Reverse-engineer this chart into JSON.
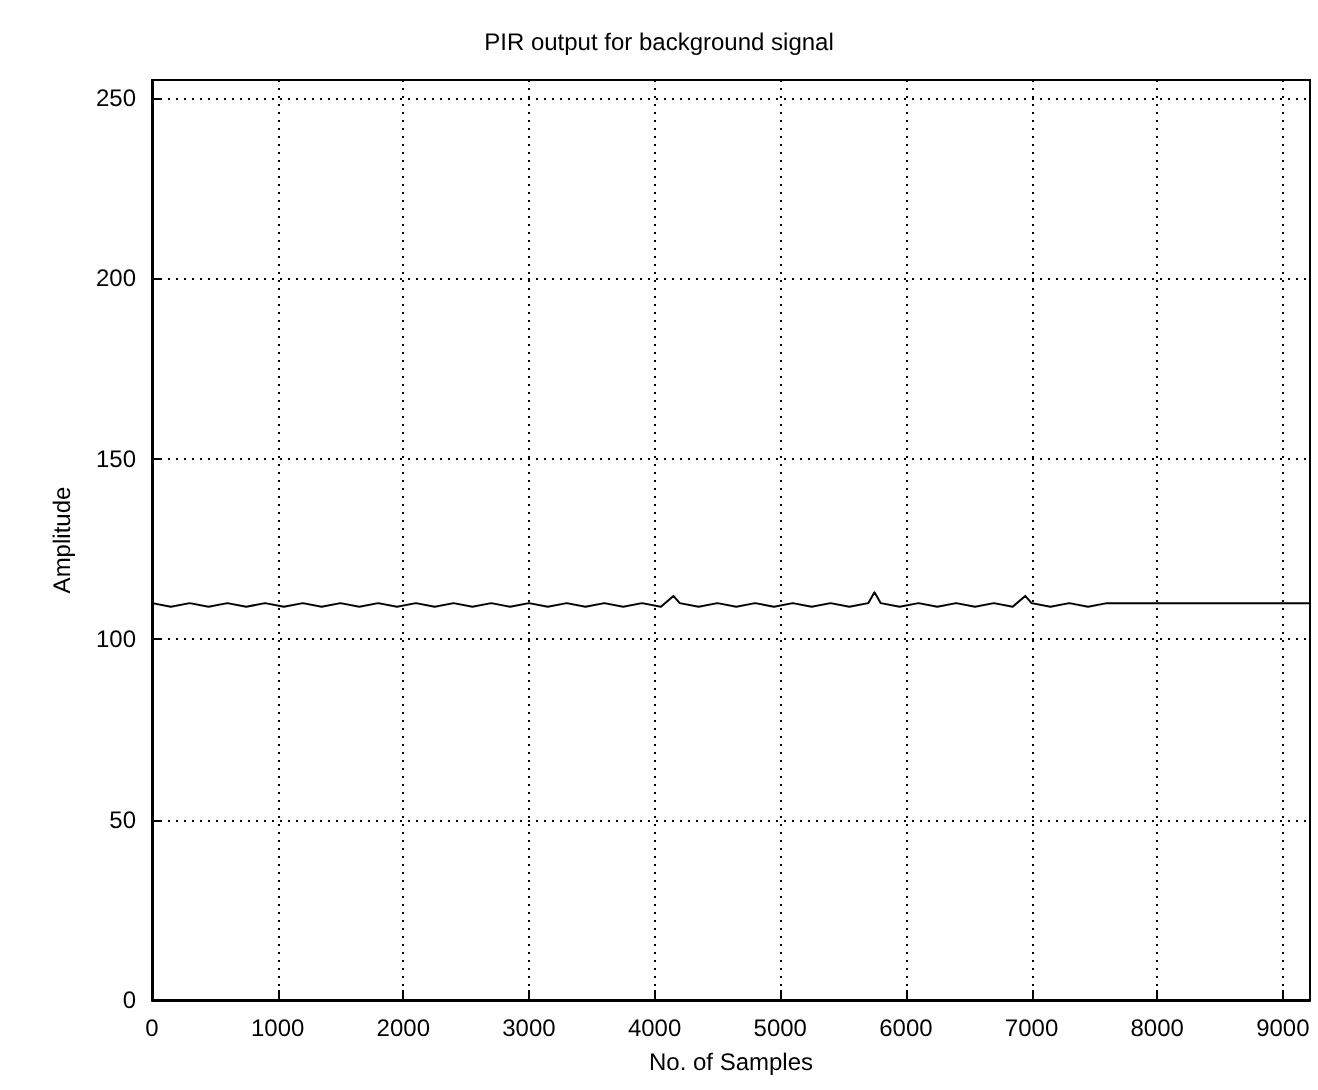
{
  "chart_data": {
    "type": "line",
    "title": "PIR output for background signal",
    "xlabel": "No. of Samples",
    "ylabel": "Amplitude",
    "xlim": [
      0,
      9216
    ],
    "ylim": [
      0,
      255
    ],
    "xticks": [
      0,
      1000,
      2000,
      3000,
      4000,
      5000,
      6000,
      7000,
      8000,
      9000
    ],
    "yticks": [
      0,
      50,
      100,
      150,
      200,
      250
    ],
    "grid": true,
    "marker": "none",
    "line_style": "solid",
    "series": [
      {
        "color": "#000000",
        "x": [
          0,
          150,
          300,
          450,
          600,
          750,
          900,
          1050,
          1200,
          1350,
          1500,
          1650,
          1800,
          1950,
          2100,
          2250,
          2400,
          2550,
          2700,
          2850,
          3000,
          3150,
          3300,
          3450,
          3600,
          3750,
          3900,
          4050,
          4150,
          4200,
          4350,
          4500,
          4650,
          4800,
          4950,
          5100,
          5250,
          5400,
          5550,
          5700,
          5750,
          5800,
          5950,
          6100,
          6250,
          6400,
          6550,
          6700,
          6850,
          6950,
          7000,
          7150,
          7300,
          7450,
          7600,
          7750,
          7900,
          8050,
          8200,
          8350,
          8500,
          8650,
          8800,
          8950,
          9100,
          9216
        ],
        "values": [
          110,
          109,
          110,
          109,
          110,
          109,
          110,
          109,
          110,
          109,
          110,
          109,
          110,
          109,
          110,
          109,
          110,
          109,
          110,
          109,
          110,
          109,
          110,
          109,
          110,
          109,
          110,
          109,
          112,
          110,
          109,
          110,
          109,
          110,
          109,
          110,
          109,
          110,
          109,
          110,
          113,
          110,
          109,
          110,
          109,
          110,
          109,
          110,
          109,
          112,
          110,
          109,
          110,
          109,
          110,
          110,
          110,
          110,
          110,
          110,
          110,
          110,
          110,
          110,
          110,
          110
        ]
      }
    ]
  }
}
